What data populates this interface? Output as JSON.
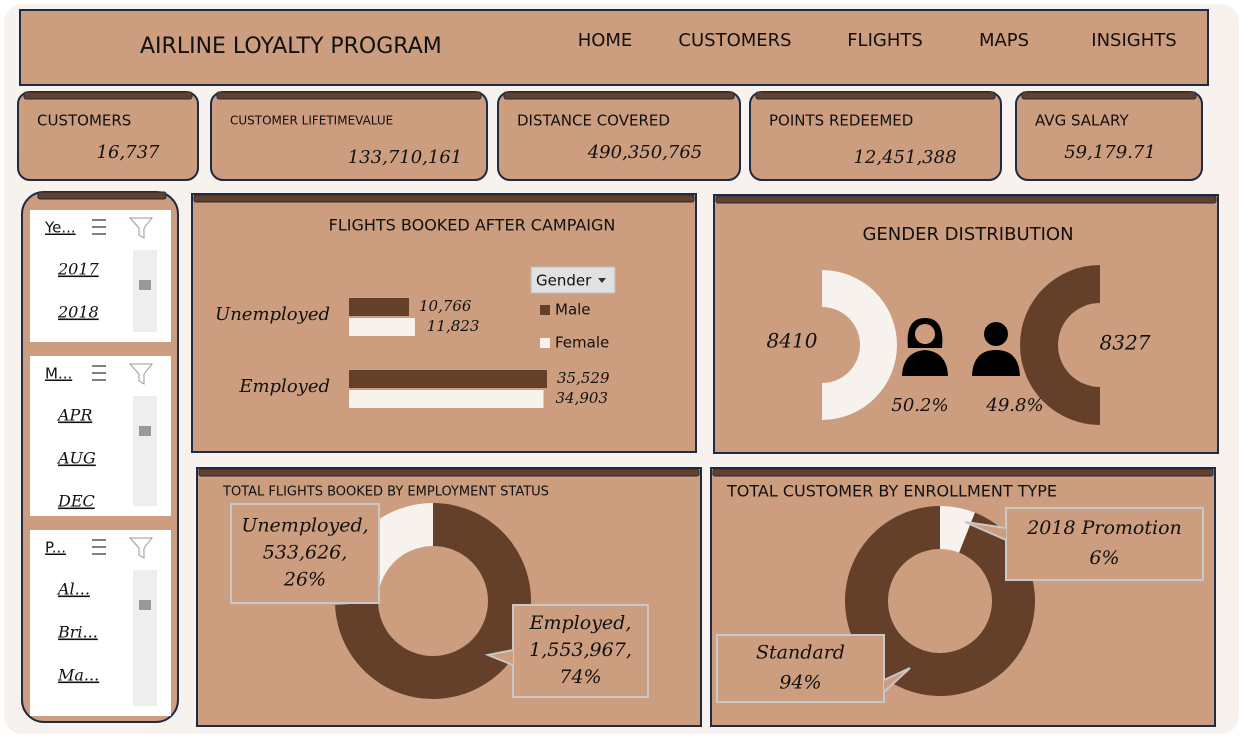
{
  "header": {
    "title": "AIRLINE LOYALTY PROGRAM",
    "nav": [
      "HOME",
      "CUSTOMERS",
      "FLIGHTS",
      "MAPS",
      "INSIGHTS"
    ]
  },
  "kpis": [
    {
      "label": "CUSTOMERS",
      "value": "16,737"
    },
    {
      "label": "CUSTOMER LIFETIMEVALUE",
      "value": "133,710,161"
    },
    {
      "label": "DISTANCE COVERED",
      "value": "490,350,765"
    },
    {
      "label": "POINTS REDEEMED",
      "value": "12,451,388"
    },
    {
      "label": "AVG SALARY",
      "value": "59,179.71"
    }
  ],
  "slicers": [
    {
      "title": "Ye...",
      "items": [
        "2017",
        "2018"
      ]
    },
    {
      "title": "M...",
      "items": [
        "APR",
        "AUG",
        "DEC"
      ]
    },
    {
      "title": "P...",
      "items": [
        "Al...",
        "Bri...",
        "Ma..."
      ]
    }
  ],
  "chart_data": [
    {
      "type": "bar",
      "title": "FLIGHTS BOOKED AFTER CAMPAIGN",
      "legend_title": "Gender",
      "categories": [
        "Unemployed",
        "Employed"
      ],
      "series": [
        {
          "name": "Male",
          "color": "#64402a",
          "values": [
            10766,
            35529
          ],
          "value_labels": [
            "10,766",
            "35,529"
          ]
        },
        {
          "name": "Female",
          "color": "#f8f2ef",
          "values": [
            11823,
            34903
          ],
          "value_labels": [
            "11,823",
            "34,903"
          ]
        }
      ]
    },
    {
      "type": "half-donut",
      "title": "GENDER DISTRIBUTION",
      "values": [
        8410,
        8327
      ],
      "colors": [
        "#f8f2ef",
        "#64402a"
      ],
      "share_labels": [
        "50.2%",
        "49.8%"
      ]
    },
    {
      "type": "donut",
      "title": "TOTAL FLIGHTS BOOKED BY EMPLOYMENT STATUS",
      "categories": [
        "Employed,",
        "Unemployed,"
      ],
      "values": [
        1553967,
        533626
      ],
      "value_labels": [
        "1,553,967,",
        "533,626,"
      ],
      "share_labels": [
        "74%",
        "26%"
      ],
      "colors": [
        "#64402a",
        "#f8f2ef"
      ]
    },
    {
      "type": "donut",
      "title": "TOTAL CUSTOMER BY ENROLLMENT TYPE",
      "categories": [
        "2018 Promotion",
        "Standard"
      ],
      "values": [
        6,
        94
      ],
      "value_labels": [
        "6%",
        "94%"
      ],
      "colors": [
        "#f8f2ef",
        "#64402a"
      ]
    }
  ]
}
